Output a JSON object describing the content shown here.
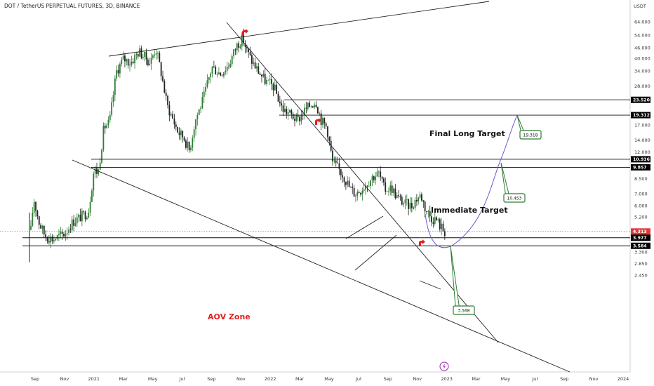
{
  "chart_data": {
    "type": "candlestick",
    "title": "DOT / TetherUS PERPETUAL FUTURES, 3D, BINANCE",
    "y_axis": {
      "unit": "USDT",
      "scale": "log",
      "ticks": [
        "64.000",
        "54.000",
        "46.000",
        "40.000",
        "34.000",
        "28.000",
        "17.000",
        "14.000",
        "12.000",
        "8.500",
        "7.000",
        "6.000",
        "5.200",
        "3.300",
        "2.850",
        "2.450"
      ],
      "range": [
        2.25,
        80
      ]
    },
    "x_axis": {
      "ticks": [
        "Sep",
        "Nov",
        "2021",
        "Mar",
        "May",
        "Jul",
        "Sep",
        "Nov",
        "2022",
        "Mar",
        "May",
        "Jul",
        "Sep",
        "Nov",
        "2023",
        "Mar",
        "May",
        "Jul",
        "Sep",
        "Nov",
        "2024"
      ]
    },
    "price_tags": [
      {
        "value": "23.520",
        "bg": "#000000"
      },
      {
        "value": "19.312",
        "bg": "#000000"
      },
      {
        "value": "10.936",
        "bg": "#000000"
      },
      {
        "value": "9.857",
        "bg": "#000000"
      },
      {
        "value": "4.313",
        "bg": "#e03a3a",
        "countdown": "17:44:05"
      },
      {
        "value": "3.977",
        "bg": "#000000"
      },
      {
        "value": "3.584",
        "bg": "#000000"
      }
    ],
    "horizontal_levels": [
      23.52,
      19.312,
      10.936,
      9.857,
      3.977,
      3.584
    ],
    "annotations": {
      "final_target": "Final Long Target",
      "immediate_target": "Immediate Target",
      "zone": "AOV Zone"
    },
    "callouts": [
      {
        "label": "19.318",
        "value": 19.318
      },
      {
        "label": "10.453",
        "value": 10.453
      },
      {
        "label": "3.568",
        "value": 3.568
      }
    ],
    "current_price": 4.313,
    "projection": {
      "from": 4.3,
      "low": 3.57,
      "to": 19.3
    }
  },
  "colors": {
    "up": "#2e7d32",
    "down": "#222222",
    "accent_green": "#2e7d32",
    "projection": "#6a5acd",
    "price_line": "#e03a3a",
    "reversal_icon": "#e02020"
  },
  "icons": {
    "reversal": "reversal-arrow-icon",
    "event": "lightning-icon"
  }
}
